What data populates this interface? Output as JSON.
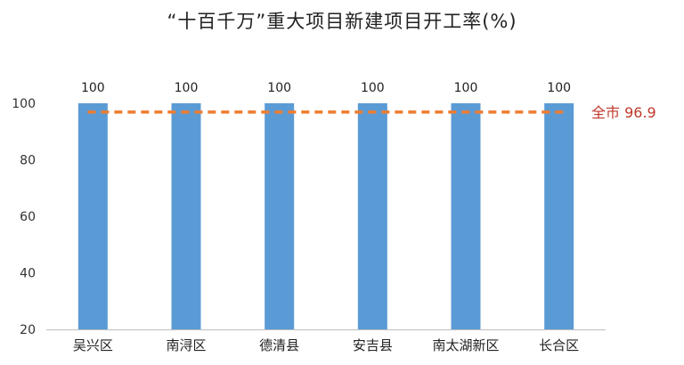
{
  "chart_data": {
    "type": "bar",
    "title": "“十百千万”重大项目新建项目开工率(%)",
    "categories": [
      "吴兴区",
      "南浔区",
      "德清县",
      "安吉县",
      "南太湖新区",
      "长合区"
    ],
    "values": [
      100,
      100,
      100,
      100,
      100,
      100
    ],
    "data_labels": [
      "100",
      "100",
      "100",
      "100",
      "100",
      "100"
    ],
    "ylim": [
      20,
      100
    ],
    "yticks": [
      20,
      40,
      60,
      80,
      100
    ],
    "grid": false,
    "legend": "none",
    "reference_line": {
      "value": 96.9,
      "label": "全市 96.9",
      "style": "dashed"
    },
    "colors": {
      "bar": "#5b9bd5",
      "reference": "#ed7d31",
      "reference_label": "#c0392b"
    }
  }
}
